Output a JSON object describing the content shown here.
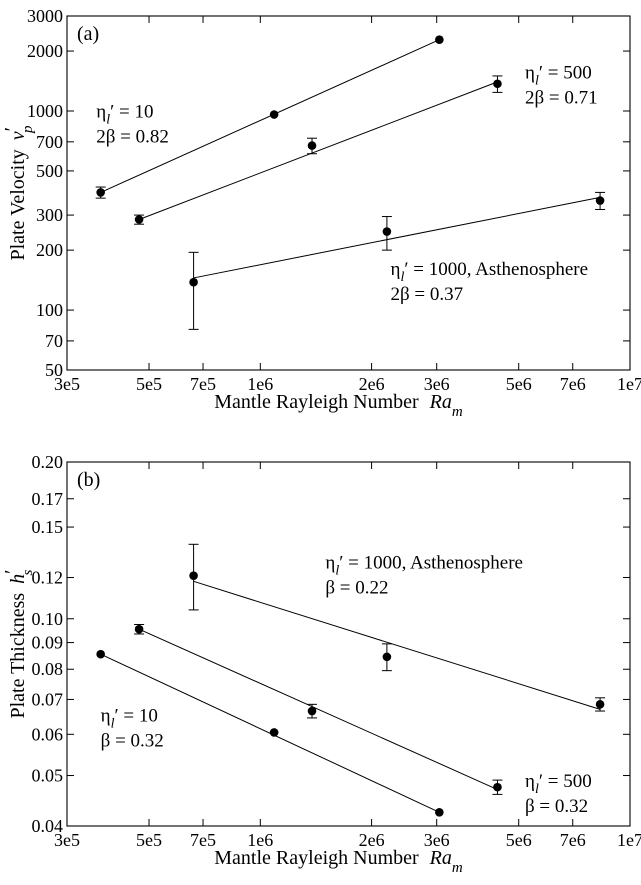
{
  "chart_data": [
    {
      "type": "scatter",
      "panel_label": "(a)",
      "xlabel": "Mantle Rayleigh Number",
      "xlabel_sym": "Ra",
      "xlabel_sub": "m",
      "ylabel": "Plate Velocity",
      "ylabel_sym": "v",
      "ylabel_prime": "′",
      "ylabel_sub": "p",
      "x_scale": "log",
      "y_scale": "log",
      "xlim": [
        300000,
        10000000
      ],
      "ylim": [
        50,
        3000
      ],
      "xticks": [
        300000,
        500000,
        700000,
        1000000,
        2000000,
        3000000,
        5000000,
        7000000,
        10000000
      ],
      "xtick_labels": [
        "3e5",
        "5e5",
        "7e5",
        "1e6",
        "2e6",
        "3e6",
        "5e6",
        "7e6",
        "1e7"
      ],
      "yticks": [
        50,
        70,
        100,
        200,
        300,
        500,
        700,
        1000,
        2000,
        3000
      ],
      "ytick_labels": [
        "50",
        "70",
        "100",
        "200",
        "300",
        "500",
        "700",
        "1000",
        "2000",
        "3000"
      ],
      "series": [
        {
          "points": [
            {
              "x": 370000,
              "y": 390,
              "err": 25
            },
            {
              "x": 1090000,
              "y": 960,
              "err": 0
            },
            {
              "x": 3050000,
              "y": 2280,
              "err": 0
            }
          ],
          "fit": [
            [
              370000,
              390
            ],
            [
              3050000,
              2280
            ]
          ]
        },
        {
          "points": [
            {
              "x": 470000,
              "y": 285,
              "err": 15
            },
            {
              "x": 1380000,
              "y": 670,
              "err": 60
            },
            {
              "x": 4380000,
              "y": 1370,
              "err": 130
            }
          ],
          "fit": [
            [
              470000,
              285
            ],
            [
              4380000,
              1400
            ]
          ]
        },
        {
          "points": [
            {
              "x": 660000,
              "y": 138,
              "err_lo": 58,
              "err_hi": 57
            },
            {
              "x": 2200000,
              "y": 248,
              "err_lo": 48,
              "err_hi": 47
            },
            {
              "x": 8300000,
              "y": 355,
              "err_lo": 35,
              "err_hi": 35
            }
          ],
          "fit": [
            [
              660000,
              145
            ],
            [
              8300000,
              368
            ]
          ]
        }
      ],
      "annotations": [
        {
          "line1_sym": "η",
          "line1_sub": "l",
          "line1_rest": "′ = 10",
          "line2": "2β = 0.82",
          "x": 360000,
          "y": 930
        },
        {
          "line1_sym": "η",
          "line1_sub": "l",
          "line1_rest": "′ = 500",
          "line2": "2β = 0.71",
          "x": 5200000,
          "y": 1460
        },
        {
          "line1_sym": "η",
          "line1_sub": "l",
          "line1_rest": "′ = 1000, Asthenosphere",
          "line2": "2β = 0.37",
          "x": 2250000,
          "y": 150
        }
      ]
    },
    {
      "type": "scatter",
      "panel_label": "(b)",
      "xlabel": "Mantle Rayleigh Number",
      "xlabel_sym": "Ra",
      "xlabel_sub": "m",
      "ylabel": "Plate Thickness",
      "ylabel_sym": "h",
      "ylabel_prime": "′",
      "ylabel_sub": "s",
      "x_scale": "log",
      "y_scale": "log",
      "xlim": [
        300000,
        10000000
      ],
      "ylim": [
        0.04,
        0.2
      ],
      "xticks": [
        300000,
        500000,
        700000,
        1000000,
        2000000,
        3000000,
        5000000,
        7000000,
        10000000
      ],
      "xtick_labels": [
        "3e5",
        "5e5",
        "7e5",
        "1e6",
        "2e6",
        "3e6",
        "5e6",
        "7e6",
        "1e7"
      ],
      "yticks": [
        0.04,
        0.05,
        0.06,
        0.07,
        0.08,
        0.09,
        0.1,
        0.12,
        0.15,
        0.17,
        0.2
      ],
      "ytick_labels": [
        "0.04",
        "0.05",
        "0.06",
        "0.07",
        "0.08",
        "0.09",
        "0.10",
        "0.12",
        "0.15",
        "0.17",
        "0.20"
      ],
      "series": [
        {
          "points": [
            {
              "x": 370000,
              "y": 0.0855,
              "err": 0
            },
            {
              "x": 1090000,
              "y": 0.0605,
              "err": 0
            },
            {
              "x": 3050000,
              "y": 0.0425,
              "err": 0
            }
          ],
          "fit": [
            [
              370000,
              0.0855
            ],
            [
              3050000,
              0.0425
            ]
          ]
        },
        {
          "points": [
            {
              "x": 470000,
              "y": 0.0955,
              "err": 0.002
            },
            {
              "x": 1380000,
              "y": 0.0665,
              "err": 0.002
            },
            {
              "x": 4380000,
              "y": 0.0475,
              "err": 0.0015
            }
          ],
          "fit": [
            [
              470000,
              0.0955
            ],
            [
              4380000,
              0.047
            ]
          ]
        },
        {
          "points": [
            {
              "x": 660000,
              "y": 0.121,
              "err_lo": 0.017,
              "err_hi": 0.018
            },
            {
              "x": 2200000,
              "y": 0.0845,
              "err_lo": 0.005,
              "err_hi": 0.005
            },
            {
              "x": 8300000,
              "y": 0.0685,
              "err_lo": 0.002,
              "err_hi": 0.002
            }
          ],
          "fit": [
            [
              660000,
              0.118
            ],
            [
              8300000,
              0.067
            ]
          ]
        }
      ],
      "annotations": [
        {
          "line1_sym": "η",
          "line1_sub": "l",
          "line1_rest": "′ = 1000, Asthenosphere",
          "line2": "β =   0.22",
          "x": 1500000,
          "y": 0.125
        },
        {
          "line1_sym": "η",
          "line1_sub": "l",
          "line1_rest": "′ = 10",
          "line2": "β =   0.32",
          "x": 370000,
          "y": 0.0635
        },
        {
          "line1_sym": "η",
          "line1_sub": "l",
          "line1_rest": "′ = 500",
          "line2": "β =   0.32",
          "x": 5200000,
          "y": 0.0475
        }
      ]
    }
  ]
}
